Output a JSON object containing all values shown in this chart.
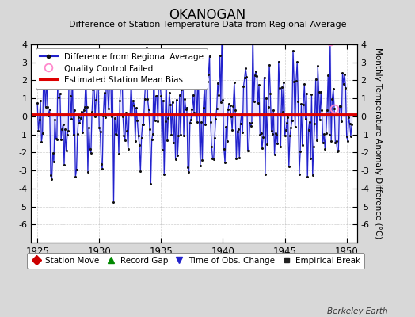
{
  "title": "OKANOGAN",
  "subtitle": "Difference of Station Temperature Data from Regional Average",
  "ylabel": "Monthly Temperature Anomaly Difference (°C)",
  "xlabel_years": [
    1925,
    1930,
    1935,
    1940,
    1945,
    1950
  ],
  "xlim": [
    1924.5,
    1950.83
  ],
  "ylim": [
    -7,
    4
  ],
  "yticks": [
    -6,
    -5,
    -4,
    -3,
    -2,
    -1,
    0,
    1,
    2,
    3,
    4
  ],
  "bias_level": 0.1,
  "bias_color": "#dd0000",
  "line_color": "#2222cc",
  "fill_color": "#aaaaff",
  "marker_color": "#111111",
  "qc_color": "#ff88cc",
  "background_color": "#d8d8d8",
  "plot_bg_color": "#ffffff",
  "watermark": "Berkeley Earth",
  "seed": 42,
  "start_year": 1925,
  "end_year": 1950,
  "end_month": 6
}
